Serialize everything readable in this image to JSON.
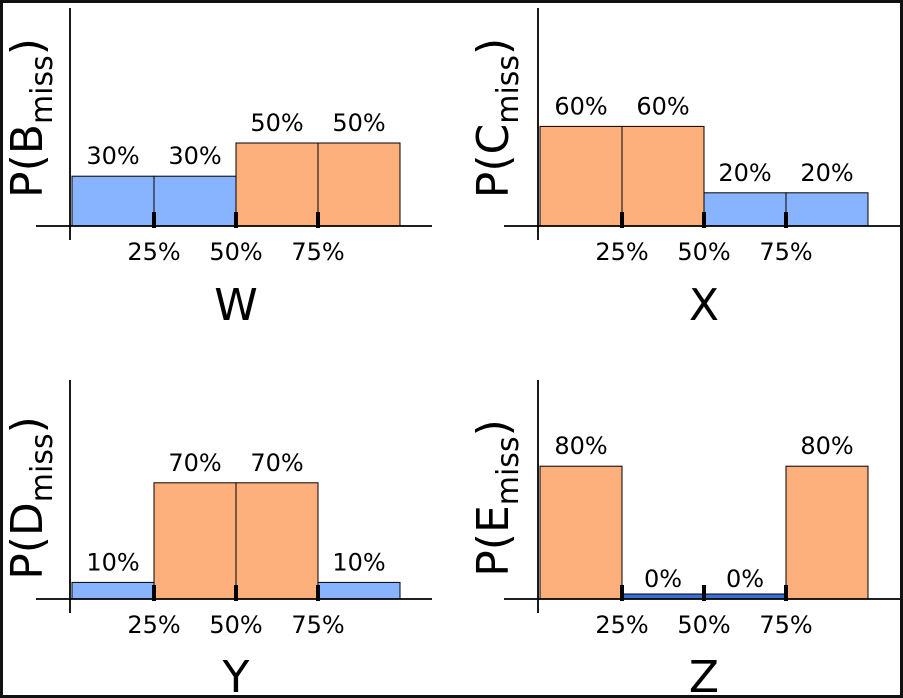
{
  "colors": {
    "low": "#87b3ff",
    "high": "#fdb07c",
    "stroke": "#000000",
    "zero_bar": "#3a6fd8"
  },
  "chart_data": [
    {
      "type": "bar",
      "title": "",
      "ylabel": "P(B",
      "ylabel_sub": "miss",
      "xlabel": "W",
      "x_ticks": [
        "25%",
        "50%",
        "75%"
      ],
      "categories": [
        "0–25%",
        "25–50%",
        "50–75%",
        "75–100%"
      ],
      "values": [
        30,
        30,
        50,
        50
      ],
      "data_labels": [
        "30%",
        "30%",
        "50%",
        "50%"
      ],
      "bar_color_keys": [
        "low",
        "low",
        "high",
        "high"
      ],
      "ylim": [
        0,
        100
      ]
    },
    {
      "type": "bar",
      "title": "",
      "ylabel": "P(C",
      "ylabel_sub": "miss",
      "xlabel": "X",
      "x_ticks": [
        "25%",
        "50%",
        "75%"
      ],
      "categories": [
        "0–25%",
        "25–50%",
        "50–75%",
        "75–100%"
      ],
      "values": [
        60,
        60,
        20,
        20
      ],
      "data_labels": [
        "60%",
        "60%",
        "20%",
        "20%"
      ],
      "bar_color_keys": [
        "high",
        "high",
        "low",
        "low"
      ],
      "ylim": [
        0,
        100
      ]
    },
    {
      "type": "bar",
      "title": "",
      "ylabel": "P(D",
      "ylabel_sub": "miss",
      "xlabel": "Y",
      "x_ticks": [
        "25%",
        "50%",
        "75%"
      ],
      "categories": [
        "0–25%",
        "25–50%",
        "50–75%",
        "75–100%"
      ],
      "values": [
        10,
        70,
        70,
        10
      ],
      "data_labels": [
        "10%",
        "70%",
        "70%",
        "10%"
      ],
      "bar_color_keys": [
        "low",
        "high",
        "high",
        "low"
      ],
      "ylim": [
        0,
        100
      ]
    },
    {
      "type": "bar",
      "title": "",
      "ylabel": "P(E",
      "ylabel_sub": "miss",
      "xlabel": "Z",
      "x_ticks": [
        "25%",
        "50%",
        "75%"
      ],
      "categories": [
        "0–25%",
        "25–50%",
        "50–75%",
        "75–100%"
      ],
      "values": [
        80,
        0,
        0,
        80
      ],
      "data_labels": [
        "80%",
        "0%",
        "0%",
        "80%"
      ],
      "bar_color_keys": [
        "high",
        "low",
        "low",
        "high"
      ],
      "ylim": [
        0,
        100
      ]
    }
  ]
}
